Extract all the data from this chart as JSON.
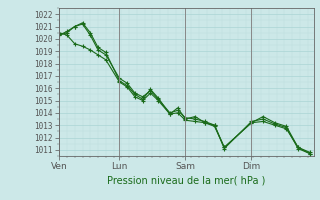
{
  "title": "Pression niveau de la mer( hPa )",
  "ylabel_values": [
    1011,
    1012,
    1013,
    1014,
    1015,
    1016,
    1017,
    1018,
    1019,
    1020,
    1021,
    1022
  ],
  "ylim": [
    1010.5,
    1022.5
  ],
  "xtick_labels": [
    "Ven",
    "Lun",
    "Sam",
    "Dim"
  ],
  "xtick_positions": [
    0,
    62,
    130,
    198
  ],
  "xlim": [
    0,
    262
  ],
  "background_color": "#cce8e8",
  "grid_major_color": "#aad4d4",
  "grid_minor_color": "#bbdddd",
  "line_color": "#1a6b1a",
  "series1_x": [
    0,
    8,
    16,
    24,
    32,
    40,
    48,
    62,
    70,
    78,
    86,
    94,
    102,
    114,
    122,
    130,
    140,
    150,
    160,
    170,
    198,
    210,
    222,
    234,
    246,
    258
  ],
  "series1_y": [
    1020.3,
    1020.6,
    1021.0,
    1021.3,
    1020.5,
    1019.3,
    1018.9,
    1016.6,
    1016.2,
    1015.5,
    1015.1,
    1015.9,
    1015.2,
    1013.9,
    1014.4,
    1013.5,
    1013.7,
    1013.2,
    1012.9,
    1011.2,
    1013.2,
    1013.7,
    1013.2,
    1012.9,
    1011.2,
    1010.8
  ],
  "series2_x": [
    0,
    8,
    16,
    24,
    32,
    40,
    48,
    62,
    70,
    78,
    86,
    94,
    102,
    114,
    122,
    130,
    140,
    150,
    160,
    170,
    198,
    210,
    222,
    234,
    246,
    258
  ],
  "series2_y": [
    1020.3,
    1020.5,
    1021.0,
    1021.2,
    1020.3,
    1019.1,
    1018.7,
    1016.8,
    1016.4,
    1015.6,
    1015.3,
    1015.8,
    1015.1,
    1014.0,
    1014.2,
    1013.6,
    1013.5,
    1013.3,
    1013.0,
    1011.1,
    1013.3,
    1013.5,
    1013.1,
    1012.8,
    1011.1,
    1010.7
  ],
  "series3_x": [
    0,
    8,
    16,
    24,
    32,
    40,
    48,
    62,
    70,
    78,
    86,
    94,
    102,
    114,
    122,
    130,
    140,
    150,
    160,
    170,
    198,
    210,
    222,
    234,
    246,
    258
  ],
  "series3_y": [
    1020.5,
    1020.3,
    1019.6,
    1019.4,
    1019.1,
    1018.7,
    1018.3,
    1016.5,
    1016.1,
    1015.3,
    1015.0,
    1015.6,
    1015.0,
    1013.9,
    1014.0,
    1013.4,
    1013.3,
    1013.2,
    1013.0,
    1011.2,
    1013.2,
    1013.3,
    1013.0,
    1012.7,
    1011.2,
    1010.7
  ],
  "day_lines": [
    0,
    62,
    130,
    198,
    262
  ],
  "border_color": "#666666",
  "tick_color": "#555555",
  "label_color": "#1a6b1a",
  "title_color": "#1a6b1a",
  "title_fontsize": 7.0,
  "ytick_fontsize": 5.5,
  "xtick_fontsize": 6.5
}
